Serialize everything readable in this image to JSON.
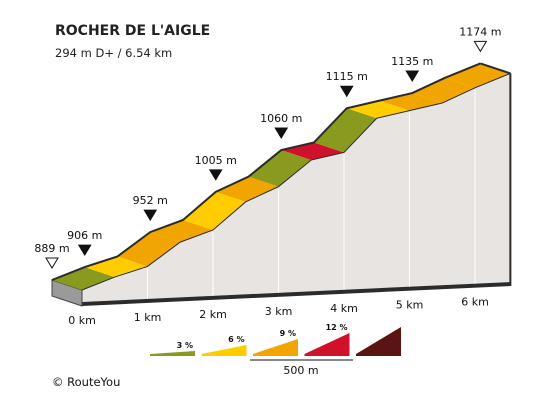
{
  "chart_data": {
    "type": "area",
    "title": "ROCHER DE L'AIGLE",
    "subtitle": "294 m D+ / 6.54 km",
    "x_ticks": [
      {
        "km": 0,
        "label": "0 km"
      },
      {
        "km": 1,
        "label": "1 km"
      },
      {
        "km": 2,
        "label": "2 km"
      },
      {
        "km": 3,
        "label": "3 km"
      },
      {
        "km": 4,
        "label": "4 km"
      },
      {
        "km": 5,
        "label": "5 km"
      },
      {
        "km": 6,
        "label": "6 km"
      }
    ],
    "profile_points": [
      {
        "km": 0.0,
        "elev": 889
      },
      {
        "km": 0.5,
        "elev": 906
      },
      {
        "km": 1.0,
        "elev": 920
      },
      {
        "km": 1.5,
        "elev": 952
      },
      {
        "km": 2.0,
        "elev": 968
      },
      {
        "km": 2.5,
        "elev": 1005
      },
      {
        "km": 3.0,
        "elev": 1025
      },
      {
        "km": 3.5,
        "elev": 1060
      },
      {
        "km": 4.0,
        "elev": 1070
      },
      {
        "km": 4.5,
        "elev": 1115
      },
      {
        "km": 5.0,
        "elev": 1125
      },
      {
        "km": 5.5,
        "elev": 1135
      },
      {
        "km": 6.0,
        "elev": 1155
      },
      {
        "km": 6.54,
        "elev": 1174
      }
    ],
    "segment_colors": [
      "#8a9a1e",
      "#ffcc00",
      "#f0a500",
      "#f0a500",
      "#ffcc00",
      "#f0a500",
      "#8a9a1e",
      "#d0112b",
      "#8a9a1e",
      "#ffcc00",
      "#f0a500",
      "#f0a500",
      "#f0a500"
    ],
    "elevation_markers": [
      {
        "km": 0.0,
        "elev": 889,
        "label": "889 m",
        "marker": "hollow"
      },
      {
        "km": 0.5,
        "elev": 906,
        "label": "906 m",
        "marker": "filled"
      },
      {
        "km": 1.5,
        "elev": 952,
        "label": "952 m",
        "marker": "filled"
      },
      {
        "km": 2.5,
        "elev": 1005,
        "label": "1005 m",
        "marker": "filled"
      },
      {
        "km": 3.5,
        "elev": 1060,
        "label": "1060 m",
        "marker": "filled"
      },
      {
        "km": 4.5,
        "elev": 1115,
        "label": "1115 m",
        "marker": "filled"
      },
      {
        "km": 5.5,
        "elev": 1135,
        "label": "1135 m",
        "marker": "filled"
      },
      {
        "km": 6.54,
        "elev": 1174,
        "label": "1174 m",
        "marker": "hollow"
      }
    ],
    "legend": [
      {
        "label": "3 %",
        "color": "#8a9a1e"
      },
      {
        "label": "6 %",
        "color": "#ffcc00"
      },
      {
        "label": "9 %",
        "color": "#f0a500"
      },
      {
        "label": "12 %",
        "color": "#d0112b"
      },
      {
        "label": "",
        "color": "#5a1512"
      }
    ],
    "scale_label": "500 m",
    "xlim": [
      0,
      6.54
    ],
    "ylim": [
      889,
      1174
    ]
  },
  "copyright": "©  RouteYou",
  "colors": {
    "side_fill": "#e8e4e2",
    "dark": "#2b2b2b"
  }
}
